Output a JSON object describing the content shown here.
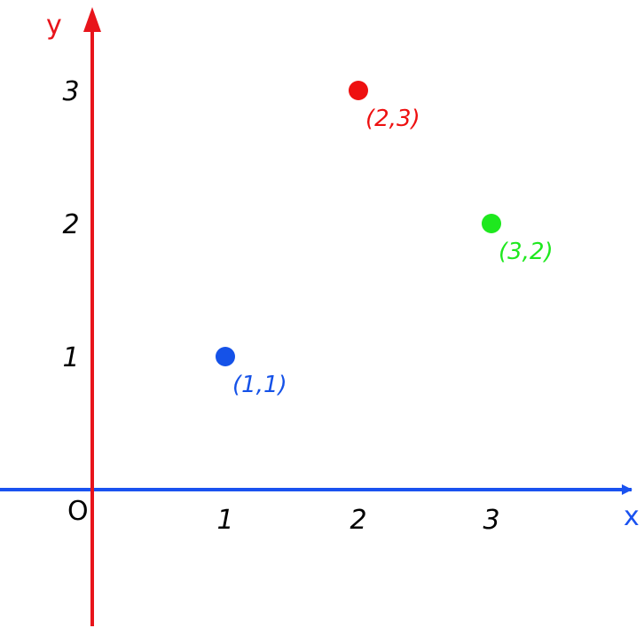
{
  "chart_data": {
    "type": "scatter",
    "title": "",
    "xlabel": "x",
    "ylabel": "y",
    "origin_label": "O",
    "xlim": [
      -0.7,
      4.1
    ],
    "ylim": [
      -1.0,
      3.6
    ],
    "x_ticks": [
      {
        "value": 1,
        "label": "1"
      },
      {
        "value": 2,
        "label": "2"
      },
      {
        "value": 3,
        "label": "3"
      }
    ],
    "y_ticks": [
      {
        "value": 1,
        "label": "1"
      },
      {
        "value": 2,
        "label": "2"
      },
      {
        "value": 3,
        "label": "3"
      }
    ],
    "grid": false,
    "legend": "none",
    "x_axis_color": "#1a52f0",
    "y_axis_color": "#e8141b",
    "points": [
      {
        "x": 1,
        "y": 1,
        "label": "(1,1)",
        "color": "#1552e8"
      },
      {
        "x": 2,
        "y": 3,
        "label": "(2,3)",
        "color": "#ee1010"
      },
      {
        "x": 3,
        "y": 2,
        "label": "(3,2)",
        "color": "#1ee81e"
      }
    ]
  }
}
